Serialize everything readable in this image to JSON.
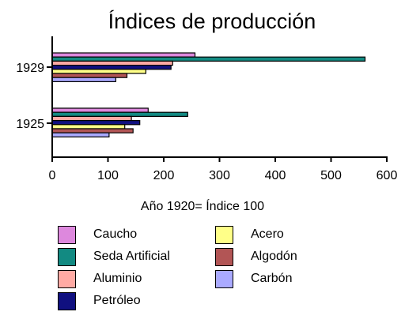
{
  "chart_data": {
    "type": "bar",
    "orientation": "horizontal",
    "title": "Índices de producción",
    "xlabel": "Año 1920= Índice 100",
    "ylabel": "",
    "categories": [
      "1925",
      "1929"
    ],
    "xlim": [
      0,
      600
    ],
    "xticks": [
      "0",
      "100",
      "200",
      "300",
      "400",
      "500",
      "600"
    ],
    "grid": false,
    "legend_position": "bottom",
    "series": [
      {
        "name": "Caucho",
        "color": "#dd88dd",
        "values": [
          172,
          256
        ]
      },
      {
        "name": "Seda Artificial",
        "color": "#128a82",
        "values": [
          243,
          561
        ]
      },
      {
        "name": "Aluminio",
        "color": "#ffaaa4",
        "values": [
          142,
          216
        ]
      },
      {
        "name": "Petróleo",
        "color": "#101080",
        "values": [
          157,
          213
        ]
      },
      {
        "name": "Acero",
        "color": "#ffff88",
        "values": [
          130,
          168
        ]
      },
      {
        "name": "Algodón",
        "color": "#b25555",
        "values": [
          145,
          134
        ]
      },
      {
        "name": "Carbón",
        "color": "#aaaaff",
        "values": [
          102,
          114
        ]
      }
    ]
  }
}
